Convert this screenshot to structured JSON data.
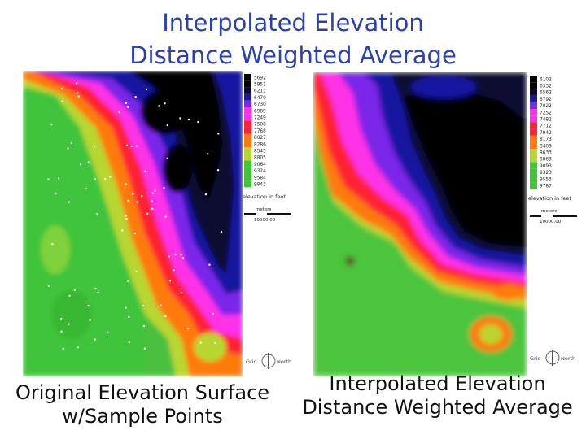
{
  "header": {
    "title_line1": "Interpolated Elevation",
    "title_line2": "Distance Weighted Average"
  },
  "left_map": {
    "caption_line1": "Original Elevation Surface",
    "caption_line2": "w/Sample Points",
    "legend_values": [
      "5692",
      "5951",
      "6211",
      "6470",
      "6730",
      "6989",
      "7249",
      "7508",
      "7768",
      "8027",
      "8286",
      "8545",
      "8805",
      "9064",
      "9324",
      "9584",
      "9843"
    ],
    "legend_title": "elevation in feet",
    "scale_label": "meters",
    "scale_value": "10000.00",
    "north_left": "Grid",
    "north_right": "North"
  },
  "right_map": {
    "caption_line1": "Interpolated Elevation",
    "caption_line2": "Distance Weighted Average",
    "legend_values": [
      "6102",
      "6332",
      "6562",
      "6792",
      "7022",
      "7252",
      "7482",
      "7712",
      "7942",
      "8173",
      "8403",
      "8633",
      "8863",
      "9093",
      "9323",
      "9553",
      "9787"
    ],
    "legend_title": "elevation in feet",
    "scale_label": "meters",
    "scale_value": "10000.00",
    "north_left": "Grid",
    "north_right": "North"
  },
  "colors": {
    "title": "#2a3fb0",
    "green": "#3fc43a",
    "yellow_green": "#b8d630",
    "orange": "#ff7a10",
    "red": "#ff2030",
    "magenta": "#ff30e8",
    "purple": "#7a28e8",
    "blue": "#1818a0",
    "navy": "#0a0a30",
    "black": "#040404"
  }
}
